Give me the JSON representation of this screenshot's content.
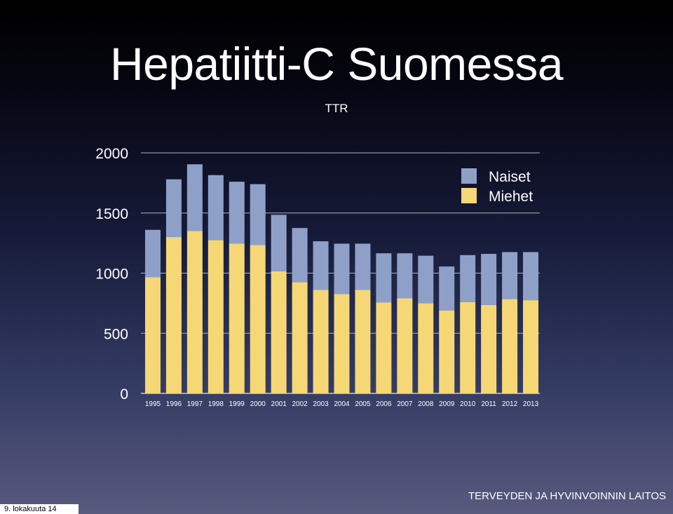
{
  "slide": {
    "title": "Hepatiitti-C Suomessa",
    "subtitle": "TTR",
    "organization": "TERVEYDEN JA HYVINVOINNIN LAITOS",
    "date": "9. lokakuuta 14"
  },
  "chart_data": {
    "type": "bar",
    "stacked": true,
    "categories": [
      "1995",
      "1996",
      "1997",
      "1998",
      "1999",
      "2000",
      "2001",
      "2002",
      "2003",
      "2004",
      "2005",
      "2006",
      "2007",
      "2008",
      "2009",
      "2010",
      "2011",
      "2012",
      "2013"
    ],
    "series": [
      {
        "name": "Miehet",
        "color": "#f5d775",
        "values": [
          965,
          1300,
          1350,
          1275,
          1245,
          1235,
          1015,
          925,
          860,
          825,
          860,
          755,
          790,
          750,
          690,
          760,
          735,
          785,
          775
        ]
      },
      {
        "name": "Naiset",
        "color": "#8fa0c8",
        "values": [
          395,
          480,
          555,
          540,
          515,
          505,
          470,
          450,
          405,
          420,
          385,
          410,
          375,
          395,
          365,
          390,
          425,
          390,
          400
        ]
      }
    ],
    "legend_order": [
      "Naiset",
      "Miehet"
    ],
    "ylim": [
      0,
      2000
    ],
    "yticks": [
      0,
      500,
      1000,
      1500,
      2000
    ],
    "grid": true,
    "legend": "top-right",
    "xlabel": "",
    "ylabel": ""
  }
}
